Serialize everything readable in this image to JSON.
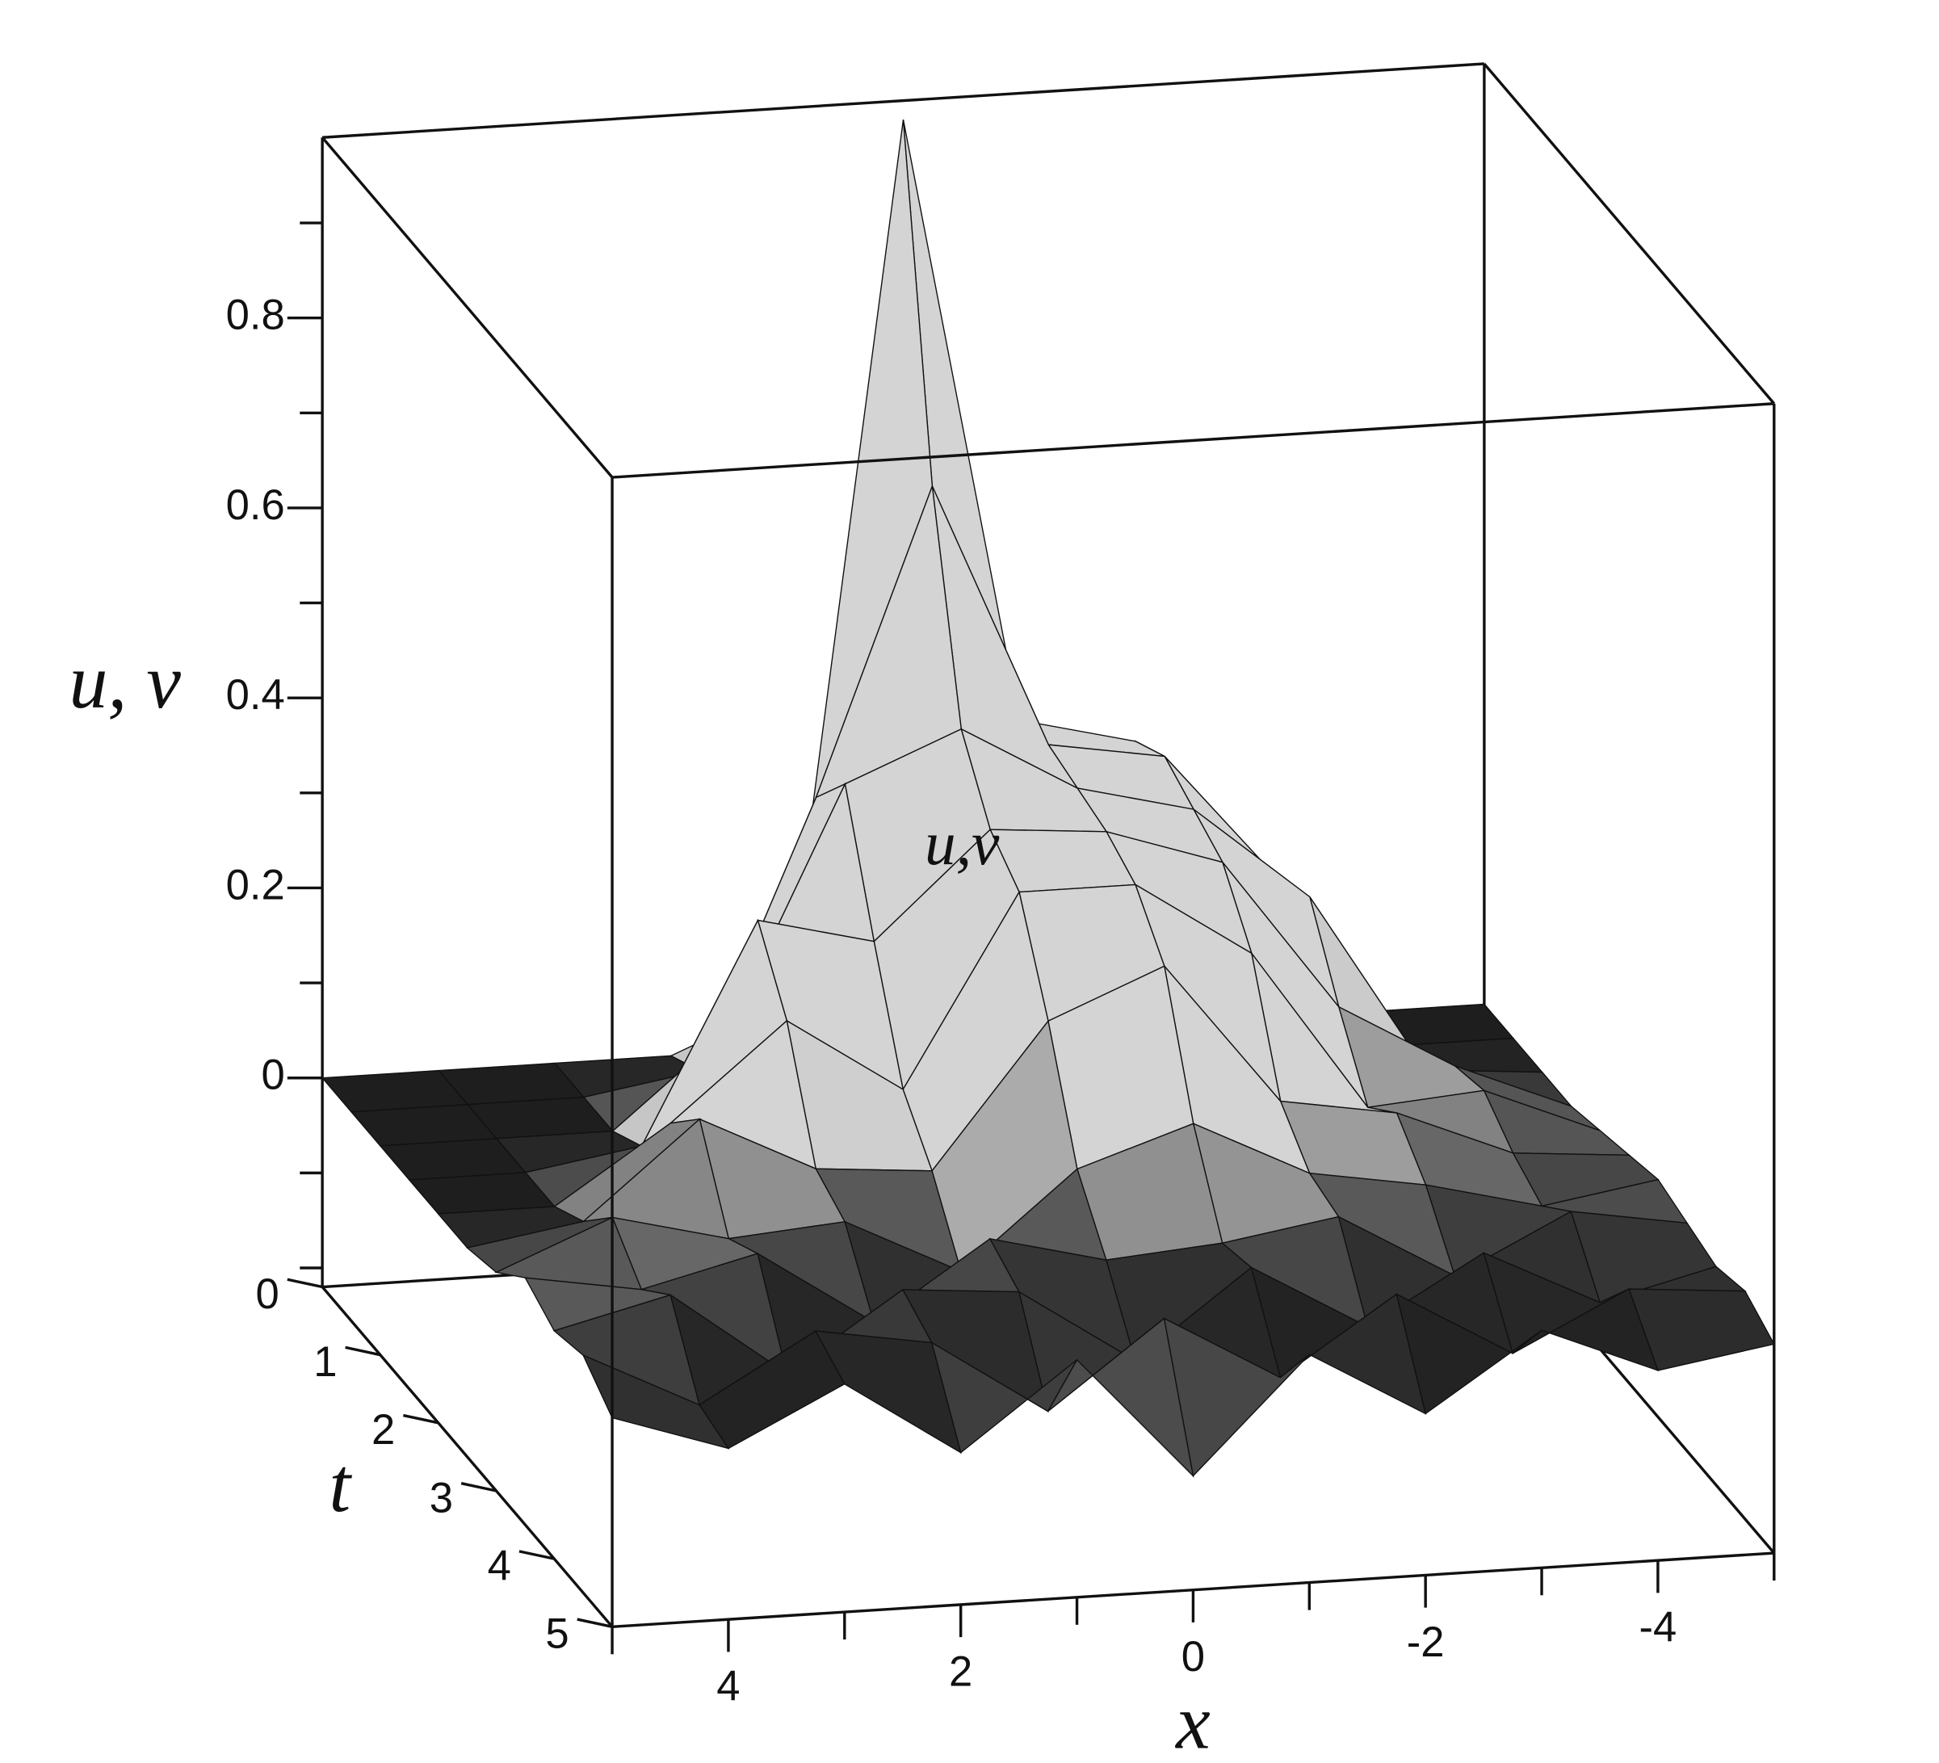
{
  "chart_data": {
    "type": "surface",
    "xlabel": "x",
    "ylabel": "t",
    "zlabel": "u, v",
    "annotation": "u,v",
    "x": [
      -5,
      -4,
      -3,
      -2,
      -1,
      0,
      1,
      2,
      3,
      4,
      5
    ],
    "y": [
      0,
      0.5,
      1,
      1.5,
      2,
      2.5,
      3,
      3.5,
      4,
      4.5,
      5
    ],
    "z": [
      [
        0,
        0,
        0.02,
        0.3,
        0.33,
        0.97,
        0.05,
        0,
        0,
        0,
        0
      ],
      [
        0,
        0,
        0.18,
        0.32,
        0.34,
        0.62,
        0.3,
        0.02,
        0,
        0,
        0
      ],
      [
        0,
        0.01,
        0.2,
        0.3,
        0.33,
        0.4,
        0.35,
        0.1,
        0,
        0,
        0
      ],
      [
        0,
        0.05,
        0.12,
        0.28,
        0.32,
        0.33,
        0.22,
        0.25,
        0.02,
        0,
        0
      ],
      [
        0.01,
        0.06,
        0.05,
        0.22,
        0.3,
        0.3,
        0.1,
        0.18,
        0.08,
        0,
        0
      ],
      [
        0.02,
        0.03,
        0.08,
        0.1,
        0.25,
        0.2,
        0.05,
        0.06,
        0.12,
        0.02,
        0
      ],
      [
        0.03,
        0.01,
        0.04,
        0.06,
        0.12,
        0.08,
        -0.02,
        0.04,
        0.03,
        0.06,
        0.01
      ],
      [
        0.02,
        0.04,
        -0.02,
        0.05,
        0.03,
        0.02,
        0.05,
        -0.03,
        0.05,
        0.02,
        0.04
      ],
      [
        0.01,
        -0.02,
        0.04,
        -0.03,
        0.04,
        -0.05,
        0.03,
        0.04,
        -0.04,
        0.05,
        0.02
      ],
      [
        0.02,
        0.03,
        -0.03,
        0.04,
        -0.04,
        0.03,
        -0.06,
        0.02,
        0.04,
        -0.03,
        0.03
      ],
      [
        0,
        -0.02,
        0.03,
        -0.05,
        0.02,
        -0.1,
        0.03,
        -0.06,
        0.02,
        -0.04,
        0
      ]
    ],
    "xlim": [
      -5,
      5
    ],
    "x_reversed": true,
    "ylim": [
      0,
      5
    ],
    "zlim": [
      -0.22,
      0.99
    ],
    "xticks": [
      -4,
      -2,
      0,
      2,
      4
    ],
    "xminorticks": [
      -5,
      -3,
      -1,
      1,
      3,
      5
    ],
    "yticks": [
      0,
      1,
      2,
      3,
      4,
      5
    ],
    "zticks": [
      0,
      0.2,
      0.4,
      0.6,
      0.8
    ],
    "zminorticks": [
      -0.2,
      -0.1,
      0.1,
      0.3,
      0.5,
      0.7,
      0.9
    ],
    "color": "#d4d4d4",
    "low_color": "#1e1e1e",
    "line_color": "#111111"
  }
}
